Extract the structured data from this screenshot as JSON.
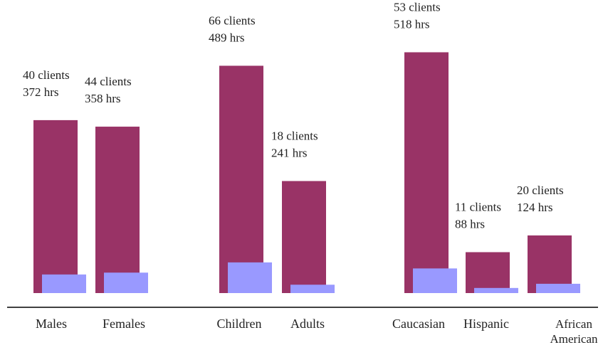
{
  "chart_data": {
    "type": "bar",
    "title": "",
    "xlabel": "",
    "ylabel": "",
    "ylim": [
      0,
      550
    ],
    "grid": false,
    "legend": "none",
    "series": [
      {
        "values": [
          372,
          358,
          489,
          241,
          518,
          88,
          124
        ],
        "color": "#993366"
      },
      {
        "values": [
          40,
          44,
          66,
          18,
          53,
          11,
          20
        ],
        "color": "#9999ff"
      }
    ],
    "categories": [
      {
        "label": [
          "Males"
        ],
        "group": 0,
        "annotation": [
          "40 clients",
          "372 hrs"
        ]
      },
      {
        "label": [
          "Females"
        ],
        "group": 0,
        "annotation": [
          "44 clients",
          "358 hrs"
        ]
      },
      {
        "label": [
          "Children"
        ],
        "group": 1,
        "annotation": [
          "66 clients",
          "489 hrs"
        ]
      },
      {
        "label": [
          "Adults"
        ],
        "group": 1,
        "annotation": [
          "18 clients",
          "241 hrs"
        ]
      },
      {
        "label": [
          "Caucasian"
        ],
        "group": 2,
        "annotation": [
          "53 clients",
          "518 hrs"
        ]
      },
      {
        "label": [
          "Hispanic"
        ],
        "group": 2,
        "annotation": [
          "11 clients",
          "88 hrs"
        ]
      },
      {
        "label": [
          "African",
          "American"
        ],
        "group": 2,
        "annotation": [
          "20 clients",
          "124 hrs"
        ]
      }
    ]
  }
}
